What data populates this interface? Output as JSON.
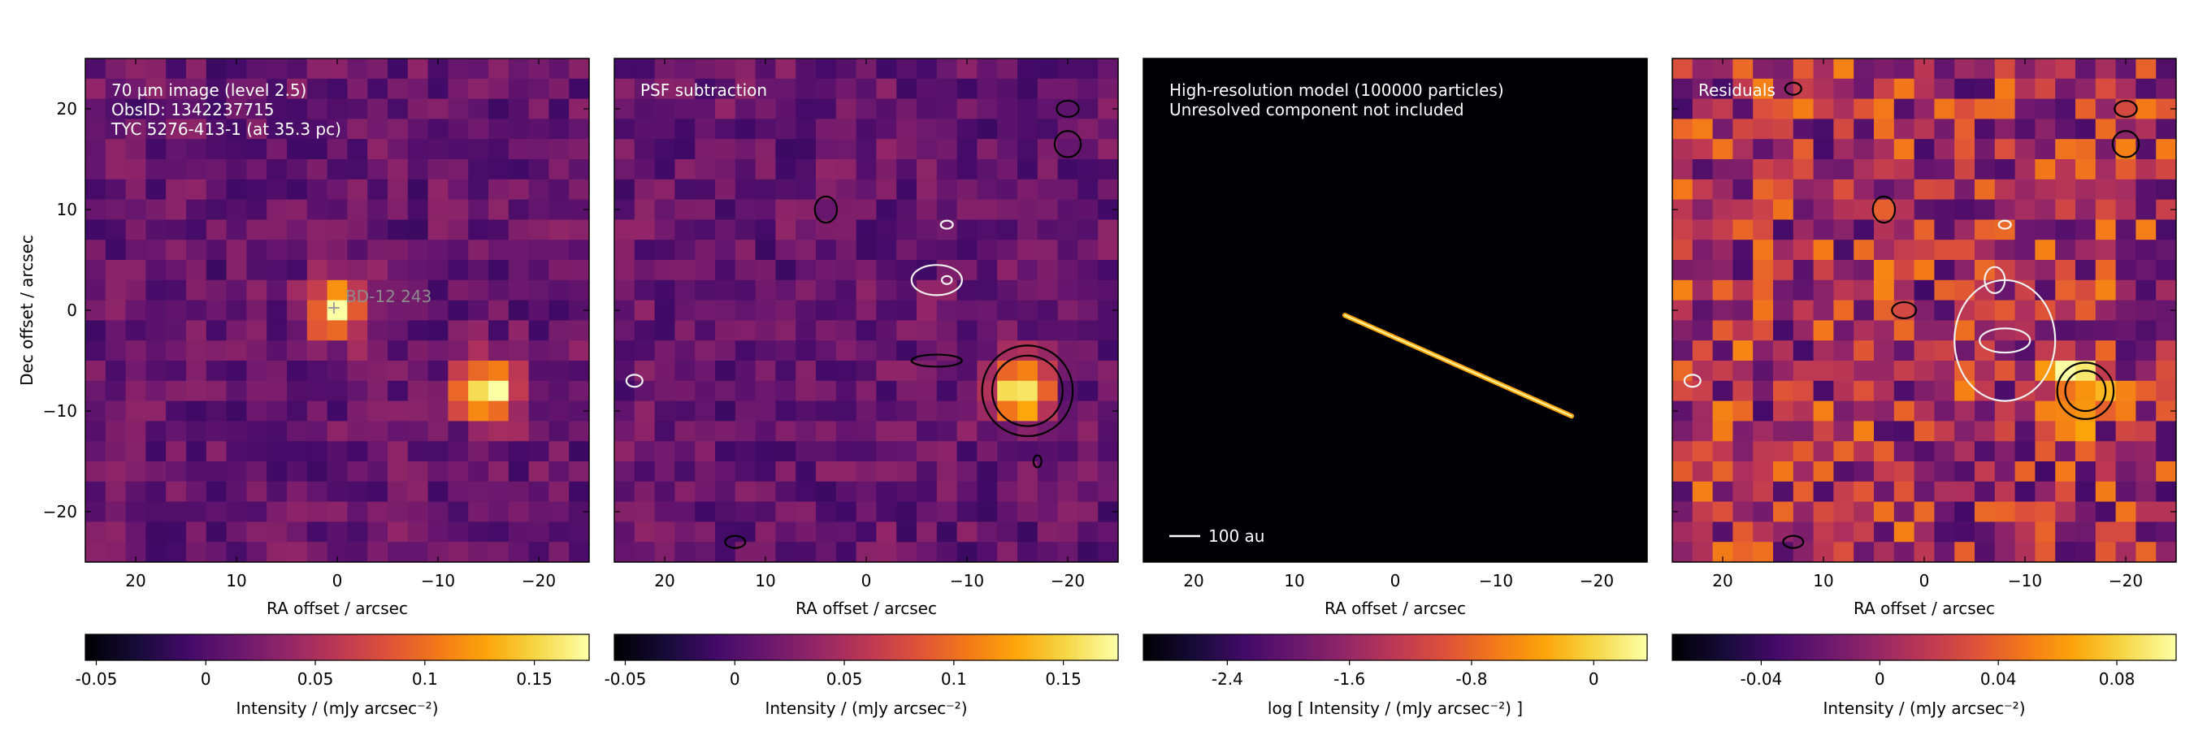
{
  "chart_data": [
    {
      "type": "heatmap",
      "panel": "observed",
      "annotation_lines": [
        "70 µm image (level 2.5)",
        "ObsID: 1342237715",
        "TYC 5276-413-1 (at 35.3 pc)"
      ],
      "source_label": "BD-12   243",
      "xlabel": "RA offset / arcsec",
      "ylabel": "Dec offset / arcsec",
      "xlim": [
        25,
        -25
      ],
      "ylim": [
        -25,
        25
      ],
      "xticks": [
        20,
        10,
        0,
        -10,
        -20
      ],
      "yticks": [
        20,
        10,
        0,
        -10,
        -20
      ],
      "xtick_labels": [
        "20",
        "10",
        "0",
        "−10",
        "−20"
      ],
      "ytick_labels": [
        "20",
        "10",
        "0",
        "−10",
        "−20"
      ],
      "colormap": "inferno",
      "colorbar": {
        "range": [
          -0.055,
          0.175
        ],
        "ticks": [
          -0.05,
          0,
          0.05,
          0.1,
          0.15
        ],
        "tick_labels": [
          "-0.05",
          "0",
          "0.05",
          "0.1",
          "0.15"
        ],
        "label": "Intensity / (mJy arcsec⁻²)"
      },
      "sources": [
        {
          "x": 0,
          "y": 0,
          "peak": 0.14
        },
        {
          "x": -15,
          "y": -8,
          "peak": 0.175
        }
      ],
      "contours": []
    },
    {
      "type": "heatmap",
      "panel": "psf_subtracted",
      "annotation_lines": [
        "PSF subtraction"
      ],
      "xlabel": "RA offset / arcsec",
      "xlim": [
        25,
        -25
      ],
      "ylim": [
        -25,
        25
      ],
      "xticks": [
        20,
        10,
        0,
        -10,
        -20
      ],
      "xtick_labels": [
        "20",
        "10",
        "0",
        "−10",
        "−20"
      ],
      "colormap": "inferno",
      "colorbar": {
        "range": [
          -0.055,
          0.175
        ],
        "ticks": [
          -0.05,
          0,
          0.05,
          0.1,
          0.15
        ],
        "tick_labels": [
          "-0.05",
          "0",
          "0.05",
          "0.1",
          "0.15"
        ],
        "label": "Intensity / (mJy arcsec⁻²)"
      },
      "sources": [
        {
          "x": -15,
          "y": -8,
          "peak": 0.175
        }
      ],
      "contours": [
        {
          "color": "black",
          "x": -16,
          "y": -8,
          "rx": 4.5,
          "ry": 4.5
        },
        {
          "color": "black",
          "x": -16,
          "y": -8,
          "rx": 3.5,
          "ry": 3.5
        },
        {
          "color": "black",
          "x": -7,
          "y": -5,
          "rx": 2.5,
          "ry": 0.6
        },
        {
          "color": "black",
          "x": -20,
          "y": 16.5,
          "rx": 1.3,
          "ry": 1.3
        },
        {
          "color": "black",
          "x": -20,
          "y": 20,
          "rx": 1.1,
          "ry": 0.8
        },
        {
          "color": "black",
          "x": 4,
          "y": 10,
          "rx": 1.1,
          "ry": 1.3
        },
        {
          "color": "black",
          "x": -17,
          "y": -15,
          "rx": 0.4,
          "ry": 0.6
        },
        {
          "color": "black",
          "x": 13,
          "y": -23,
          "rx": 1,
          "ry": 0.6
        },
        {
          "color": "white",
          "x": -7,
          "y": 3,
          "rx": 2.5,
          "ry": 1.5
        },
        {
          "color": "white",
          "x": -8,
          "y": 3,
          "rx": 0.5,
          "ry": 0.4
        },
        {
          "color": "white",
          "x": -8,
          "y": 8.5,
          "rx": 0.6,
          "ry": 0.4
        },
        {
          "color": "white",
          "x": 23,
          "y": -7,
          "rx": 0.8,
          "ry": 0.6
        }
      ]
    },
    {
      "type": "heatmap",
      "panel": "model",
      "annotation_lines": [
        "High-resolution model (100000 particles)",
        "Unresolved component not included"
      ],
      "scalebar_label": "100 au",
      "xlabel": "RA offset / arcsec",
      "xlim": [
        25,
        -25
      ],
      "ylim": [
        -25,
        25
      ],
      "xticks": [
        20,
        10,
        0,
        -10,
        -20
      ],
      "xtick_labels": [
        "20",
        "10",
        "0",
        "−10",
        "−20"
      ],
      "colormap": "inferno",
      "colorbar": {
        "range": [
          -2.95,
          0.35
        ],
        "ticks": [
          -2.4,
          -1.6,
          -0.8,
          0
        ],
        "tick_labels": [
          "-2.4",
          "-1.6",
          "-0.8",
          "0"
        ],
        "label": "log [ Intensity / (mJy arcsec⁻²) ]"
      },
      "disk": {
        "x1": 5,
        "y1": -0.5,
        "x2": -17.5,
        "y2": -10.5,
        "width": 0.9
      }
    },
    {
      "type": "heatmap",
      "panel": "residuals",
      "annotation_lines": [
        "Residuals"
      ],
      "xlabel": "RA offset / arcsec",
      "xlim": [
        25,
        -25
      ],
      "ylim": [
        -25,
        25
      ],
      "xticks": [
        20,
        10,
        0,
        -10,
        -20
      ],
      "xtick_labels": [
        "20",
        "10",
        "0",
        "−10",
        "−20"
      ],
      "colormap": "inferno",
      "colorbar": {
        "range": [
          -0.07,
          0.1
        ],
        "ticks": [
          -0.04,
          0,
          0.04,
          0.08
        ],
        "tick_labels": [
          "-0.04",
          "0",
          "0.04",
          "0.08"
        ],
        "label": "Intensity / (mJy arcsec⁻²)"
      },
      "sources": [
        {
          "x": -15,
          "y": -8,
          "peak": 0.09
        }
      ],
      "contours": [
        {
          "color": "black",
          "x": -16,
          "y": -8,
          "rx": 2.8,
          "ry": 2.8
        },
        {
          "color": "black",
          "x": -16,
          "y": -8,
          "rx": 2,
          "ry": 2
        },
        {
          "color": "black",
          "x": 2,
          "y": 0,
          "rx": 1.2,
          "ry": 0.8
        },
        {
          "color": "black",
          "x": -20,
          "y": 16.5,
          "rx": 1.3,
          "ry": 1.3
        },
        {
          "color": "black",
          "x": -20,
          "y": 20,
          "rx": 1.1,
          "ry": 0.8
        },
        {
          "color": "black",
          "x": 4,
          "y": 10,
          "rx": 1.1,
          "ry": 1.3
        },
        {
          "color": "black",
          "x": 13,
          "y": 22,
          "rx": 0.8,
          "ry": 0.6
        },
        {
          "color": "black",
          "x": 13,
          "y": -23,
          "rx": 1,
          "ry": 0.6
        },
        {
          "color": "white",
          "x": -8,
          "y": -3,
          "rx": 5,
          "ry": 6
        },
        {
          "color": "white",
          "x": -8,
          "y": -3,
          "rx": 2.5,
          "ry": 1.2
        },
        {
          "color": "white",
          "x": -7,
          "y": 3,
          "rx": 1,
          "ry": 1.3
        },
        {
          "color": "white",
          "x": -8,
          "y": 8.5,
          "rx": 0.6,
          "ry": 0.4
        },
        {
          "color": "white",
          "x": 23,
          "y": -7,
          "rx": 0.8,
          "ry": 0.6
        }
      ]
    }
  ]
}
